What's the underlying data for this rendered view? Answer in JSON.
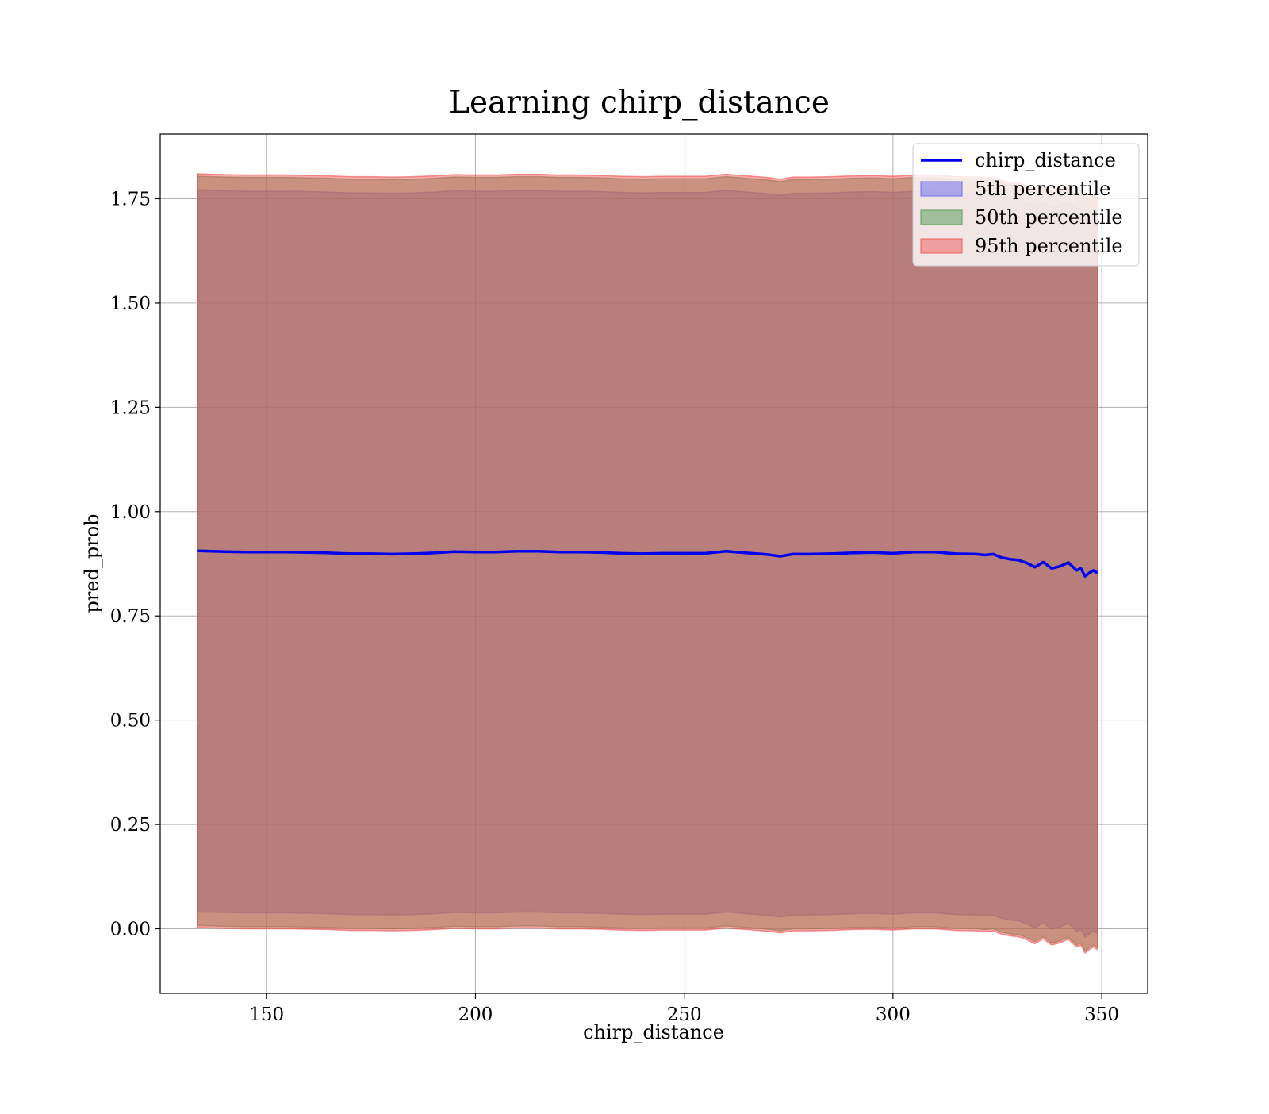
{
  "chart_data": {
    "type": "line",
    "title": "Learning chirp_distance",
    "xlabel": "chirp_distance",
    "ylabel": "pred_prob",
    "xlim": [
      124.5,
      361
    ],
    "ylim": [
      -0.155,
      1.905
    ],
    "grid": true,
    "legend_position": "top-right",
    "x_ticks": [
      150,
      200,
      250,
      300,
      350
    ],
    "x_tick_labels": [
      "150",
      "200",
      "250",
      "300",
      "350"
    ],
    "y_ticks": [
      0,
      0.25,
      0.5,
      0.75,
      1.0,
      1.25,
      1.5,
      1.75
    ],
    "y_tick_labels": [
      "0.00",
      "0.25",
      "0.50",
      "0.75",
      "1.00",
      "1.25",
      "1.50",
      "1.75"
    ],
    "legend": [
      {
        "label": "chirp_distance",
        "kind": "line",
        "color": "#0000ee"
      },
      {
        "label": "5th percentile",
        "kind": "band",
        "color": "#6666ee"
      },
      {
        "label": "50th percentile",
        "kind": "band",
        "color": "#4f9a4f"
      },
      {
        "label": "95th percentile",
        "kind": "band",
        "color": "#ee5555"
      }
    ],
    "x": [
      133.5,
      140,
      145,
      150,
      155,
      160,
      165,
      170,
      175,
      180,
      185,
      190,
      195,
      200,
      205,
      210,
      215,
      220,
      225,
      230,
      235,
      240,
      245,
      250,
      255,
      260,
      265,
      270,
      273,
      276,
      280,
      285,
      290,
      295,
      300,
      305,
      310,
      315,
      320,
      322,
      324,
      326,
      328,
      330,
      332,
      334,
      336,
      338,
      340,
      342,
      344,
      345,
      346,
      347,
      348,
      349
    ],
    "series": [
      {
        "name": "chirp_distance",
        "values": [
          0.906,
          0.904,
          0.903,
          0.903,
          0.903,
          0.902,
          0.901,
          0.899,
          0.899,
          0.898,
          0.899,
          0.901,
          0.904,
          0.903,
          0.903,
          0.905,
          0.905,
          0.903,
          0.903,
          0.902,
          0.9,
          0.899,
          0.9,
          0.9,
          0.9,
          0.905,
          0.901,
          0.897,
          0.893,
          0.898,
          0.898,
          0.899,
          0.901,
          0.902,
          0.9,
          0.903,
          0.903,
          0.899,
          0.898,
          0.896,
          0.898,
          0.89,
          0.886,
          0.884,
          0.877,
          0.867,
          0.879,
          0.864,
          0.869,
          0.878,
          0.859,
          0.864,
          0.845,
          0.853,
          0.859,
          0.853
        ]
      }
    ],
    "bands": [
      {
        "name": "5th percentile",
        "color": "#6666ee",
        "upper": [
          1.772,
          1.769,
          1.768,
          1.768,
          1.768,
          1.767,
          1.766,
          1.764,
          1.764,
          1.763,
          1.764,
          1.766,
          1.769,
          1.768,
          1.768,
          1.77,
          1.77,
          1.768,
          1.768,
          1.767,
          1.765,
          1.764,
          1.765,
          1.765,
          1.765,
          1.77,
          1.766,
          1.762,
          1.758,
          1.763,
          1.763,
          1.764,
          1.766,
          1.767,
          1.765,
          1.768,
          1.768,
          1.764,
          1.763,
          1.761,
          1.763,
          1.755,
          1.751,
          1.749,
          1.742,
          1.732,
          1.744,
          1.729,
          1.734,
          1.743,
          1.724,
          1.729,
          1.71,
          1.718,
          1.724,
          1.718
        ],
        "lower": [
          0.04,
          0.039,
          0.038,
          0.038,
          0.038,
          0.037,
          0.036,
          0.034,
          0.034,
          0.033,
          0.034,
          0.036,
          0.039,
          0.038,
          0.038,
          0.04,
          0.04,
          0.038,
          0.038,
          0.037,
          0.035,
          0.034,
          0.035,
          0.035,
          0.035,
          0.04,
          0.036,
          0.032,
          0.028,
          0.033,
          0.033,
          0.034,
          0.036,
          0.037,
          0.035,
          0.038,
          0.038,
          0.034,
          0.033,
          0.031,
          0.033,
          0.025,
          0.021,
          0.019,
          0.012,
          0.002,
          0.014,
          -0.001,
          0.004,
          0.013,
          -0.006,
          -0.001,
          -0.02,
          -0.012,
          -0.006,
          -0.012
        ]
      },
      {
        "name": "50th percentile",
        "color": "#4f9a4f",
        "upper": [
          1.804,
          1.802,
          1.801,
          1.801,
          1.801,
          1.8,
          1.799,
          1.797,
          1.797,
          1.796,
          1.797,
          1.799,
          1.802,
          1.801,
          1.801,
          1.803,
          1.803,
          1.801,
          1.801,
          1.8,
          1.798,
          1.797,
          1.798,
          1.798,
          1.798,
          1.803,
          1.799,
          1.795,
          1.791,
          1.796,
          1.796,
          1.797,
          1.799,
          1.8,
          1.798,
          1.801,
          1.801,
          1.797,
          1.796,
          1.794,
          1.796,
          1.788,
          1.784,
          1.782,
          1.775,
          1.765,
          1.777,
          1.762,
          1.767,
          1.776,
          1.757,
          1.762,
          1.743,
          1.751,
          1.757,
          1.751
        ],
        "lower": [
          0.008,
          0.006,
          0.005,
          0.005,
          0.005,
          0.004,
          0.003,
          0.001,
          0.001,
          0.0,
          0.001,
          0.003,
          0.006,
          0.005,
          0.005,
          0.007,
          0.007,
          0.005,
          0.005,
          0.004,
          0.002,
          0.001,
          0.002,
          0.002,
          0.002,
          0.007,
          0.003,
          -0.001,
          -0.005,
          0.0,
          0.0,
          0.001,
          0.003,
          0.004,
          0.002,
          0.005,
          0.005,
          0.001,
          0.0,
          -0.002,
          0.0,
          -0.008,
          -0.012,
          -0.014,
          -0.021,
          -0.031,
          -0.019,
          -0.034,
          -0.029,
          -0.02,
          -0.039,
          -0.034,
          -0.053,
          -0.045,
          -0.039,
          -0.045
        ]
      },
      {
        "name": "95th percentile",
        "color": "#ee5555",
        "upper": [
          1.81,
          1.808,
          1.807,
          1.807,
          1.807,
          1.806,
          1.805,
          1.803,
          1.803,
          1.802,
          1.803,
          1.805,
          1.808,
          1.807,
          1.807,
          1.809,
          1.809,
          1.807,
          1.807,
          1.806,
          1.804,
          1.803,
          1.804,
          1.804,
          1.804,
          1.809,
          1.805,
          1.801,
          1.797,
          1.802,
          1.802,
          1.803,
          1.805,
          1.806,
          1.804,
          1.807,
          1.807,
          1.803,
          1.802,
          1.8,
          1.802,
          1.794,
          1.79,
          1.788,
          1.781,
          1.771,
          1.783,
          1.768,
          1.773,
          1.782,
          1.763,
          1.768,
          1.749,
          1.757,
          1.763,
          1.757
        ],
        "lower": [
          0.003,
          0.001,
          0.0,
          0.0,
          0.0,
          -0.001,
          -0.002,
          -0.004,
          -0.004,
          -0.005,
          -0.004,
          -0.002,
          0.001,
          0.0,
          0.0,
          0.002,
          0.002,
          0.0,
          0.0,
          -0.001,
          -0.003,
          -0.004,
          -0.003,
          -0.003,
          -0.003,
          0.002,
          -0.002,
          -0.006,
          -0.01,
          -0.005,
          -0.005,
          -0.004,
          -0.002,
          -0.001,
          -0.003,
          0.0,
          0.0,
          -0.004,
          -0.005,
          -0.007,
          -0.005,
          -0.013,
          -0.017,
          -0.019,
          -0.026,
          -0.036,
          -0.024,
          -0.039,
          -0.034,
          -0.025,
          -0.044,
          -0.039,
          -0.058,
          -0.05,
          -0.044,
          -0.05
        ]
      }
    ]
  }
}
